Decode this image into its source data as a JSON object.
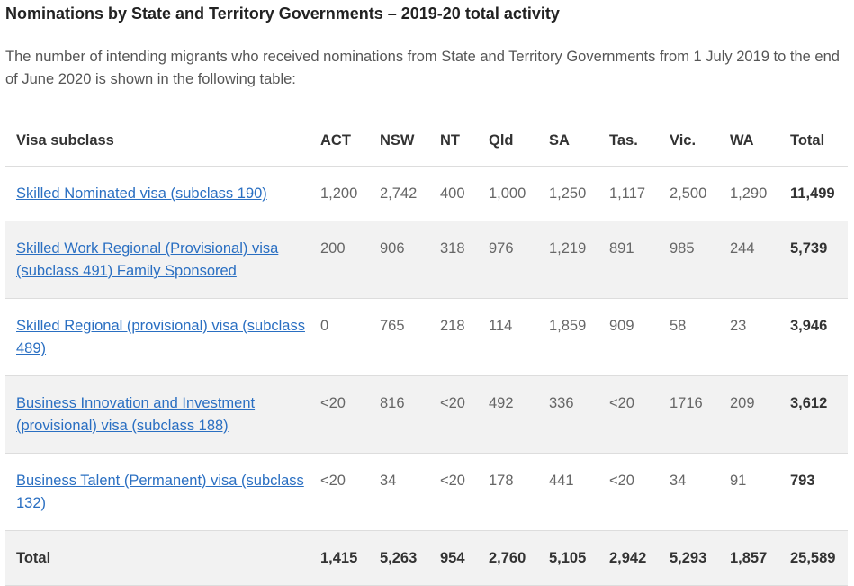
{
  "title": "Nominations by State and Territory Governments – 2019-20 total activity",
  "intro": "The number of intending migrants who received nominations from State and Territory Governments from 1 July 2019 to the end of June 2020 is shown in the following table:",
  "table": {
    "headers": [
      "Visa subclass",
      "ACT",
      "NSW",
      "NT",
      "Qld",
      "SA",
      "Tas.",
      "Vic.",
      "WA",
      "Total"
    ],
    "rows": [
      {
        "visa": "Skilled Nominated visa (subclass 190)",
        "values": [
          "1,200",
          "2,742",
          "400",
          "1,000",
          "1,250",
          "1,117",
          "2,500",
          "1,290"
        ],
        "total": "11,499"
      },
      {
        "visa": "Skilled Work Regional (Provisional) visa (subclass 491) Family Sponsored",
        "values": [
          "200",
          "906",
          "318",
          "976",
          "1,219",
          "891",
          "985",
          "244"
        ],
        "total": "5,739"
      },
      {
        "visa": "Skilled Regional (provisional) visa (subclass 489)",
        "values": [
          "0",
          "765",
          "218",
          "114",
          "1,859",
          "909",
          "58",
          "23"
        ],
        "total": "3,946"
      },
      {
        "visa": "Business Innovation and Investment (provisional) visa (subclass 188)",
        "values": [
          "<20",
          "816",
          "<20",
          "492",
          "336",
          "<20",
          "1716",
          "209"
        ],
        "total": "3,612"
      },
      {
        "visa": "Business Talent (Permanent) visa (subclass 132)",
        "values": [
          "<20",
          "34",
          "<20",
          "178",
          "441",
          "<20",
          "34",
          "91"
        ],
        "total": "793"
      }
    ],
    "total_row": {
      "label": "Total",
      "values": [
        "1,415",
        "5,263",
        "954",
        "2,760",
        "5,105",
        "2,942",
        "5,293",
        "1,857"
      ],
      "total": "25,589"
    }
  },
  "colors": {
    "link": "#2a6fc2",
    "alt_row": "#f2f2f2"
  }
}
